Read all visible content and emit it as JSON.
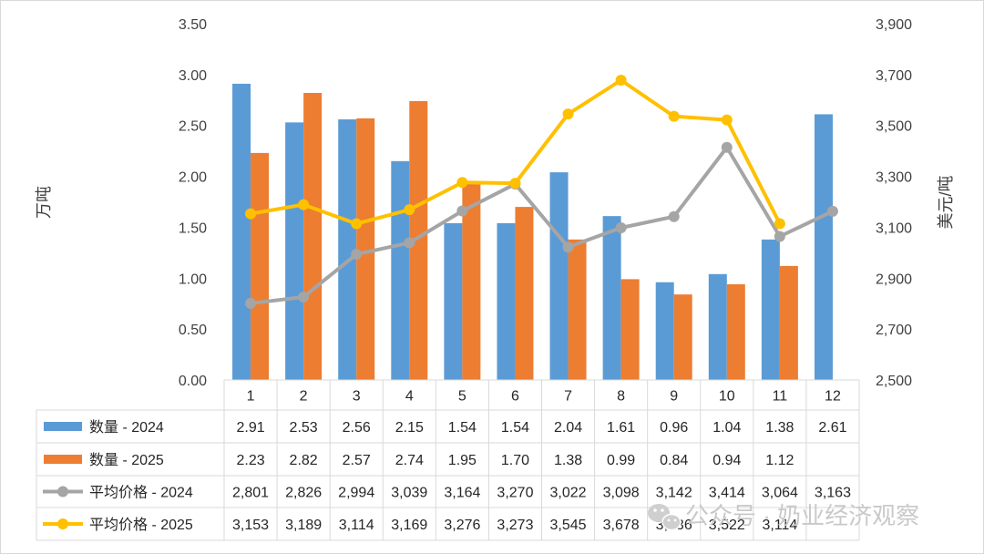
{
  "chart_data": {
    "type": "bar",
    "categories": [
      "1",
      "2",
      "3",
      "4",
      "5",
      "6",
      "7",
      "8",
      "9",
      "10",
      "11",
      "12"
    ],
    "series": [
      {
        "name": "数量 - 2024",
        "kind": "bar",
        "axis": "left",
        "color": "#5B9BD5",
        "values": [
          2.91,
          2.53,
          2.56,
          2.15,
          1.54,
          1.54,
          2.04,
          1.61,
          0.96,
          1.04,
          1.38,
          2.61
        ],
        "labels": [
          "2.91",
          "2.53",
          "2.56",
          "2.15",
          "1.54",
          "1.54",
          "2.04",
          "1.61",
          "0.96",
          "1.04",
          "1.38",
          "2.61"
        ]
      },
      {
        "name": "数量 - 2025",
        "kind": "bar",
        "axis": "left",
        "color": "#ED7D31",
        "values": [
          2.23,
          2.82,
          2.57,
          2.74,
          1.95,
          1.7,
          1.38,
          0.99,
          0.84,
          0.94,
          1.12,
          null
        ],
        "labels": [
          "2.23",
          "2.82",
          "2.57",
          "2.74",
          "1.95",
          "1.70",
          "1.38",
          "0.99",
          "0.84",
          "0.94",
          "1.12",
          ""
        ]
      },
      {
        "name": "平均价格 - 2024",
        "kind": "line",
        "axis": "right",
        "color": "#A5A5A5",
        "values": [
          2801,
          2826,
          2994,
          3039,
          3164,
          3270,
          3022,
          3098,
          3142,
          3414,
          3064,
          3163
        ],
        "labels": [
          "2,801",
          "2,826",
          "2,994",
          "3,039",
          "3,164",
          "3,270",
          "3,022",
          "3,098",
          "3,142",
          "3,414",
          "3,064",
          "3,163"
        ]
      },
      {
        "name": "平均价格 - 2025",
        "kind": "line",
        "axis": "right",
        "color": "#FFC000",
        "values": [
          3153,
          3189,
          3114,
          3169,
          3276,
          3273,
          3545,
          3678,
          3536,
          3522,
          3114,
          null
        ],
        "labels": [
          "3,153",
          "3,189",
          "3,114",
          "3,169",
          "3,276",
          "3,273",
          "3,545",
          "3,678",
          "3,536",
          "3,522",
          "3,114",
          ""
        ]
      }
    ],
    "ylabel": "万吨",
    "y2label": "美元/吨",
    "ylim": [
      0,
      3.5
    ],
    "y2lim": [
      2500,
      3900
    ],
    "yticks": [
      "0.00",
      "0.50",
      "1.00",
      "1.50",
      "2.00",
      "2.50",
      "3.00",
      "3.50"
    ],
    "y2ticks": [
      "2,500",
      "2,700",
      "2,900",
      "3,100",
      "3,300",
      "3,500",
      "3,700",
      "3,900"
    ],
    "grid": false,
    "legend": "data-table"
  },
  "watermark": {
    "icon": "wechat-icon",
    "text": "公众号 · 奶业经济观察"
  }
}
